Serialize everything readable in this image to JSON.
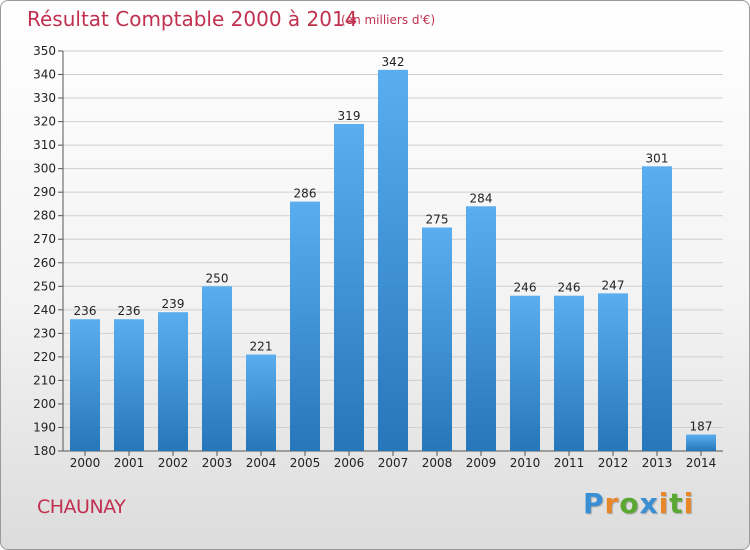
{
  "header": {
    "title": "Résultat Comptable 2000 à 2014",
    "subtitle": "(en milliers d'€)"
  },
  "footer": {
    "city": "CHAUNAY",
    "logo": "Proxiti"
  },
  "colors": {
    "title": "#c0304f",
    "bar_top": "#5aaef0",
    "bar_bottom": "#2677b9",
    "grid": "#cfcfcf",
    "logo_letters": [
      "#3a8fd4",
      "#e8872a",
      "#5aa832",
      "#3a8fd4",
      "#e8872a",
      "#5aa832",
      "#e8872a"
    ]
  },
  "chart_data": {
    "type": "bar",
    "title": "Résultat Comptable 2000 à 2014",
    "unit": "(en milliers d'€)",
    "categories": [
      "2000",
      "2001",
      "2002",
      "2003",
      "2004",
      "2005",
      "2006",
      "2007",
      "2008",
      "2009",
      "2010",
      "2011",
      "2012",
      "2013",
      "2014"
    ],
    "values": [
      236,
      236,
      239,
      250,
      221,
      286,
      319,
      342,
      275,
      284,
      246,
      246,
      247,
      301,
      187
    ],
    "ylim": [
      180,
      350
    ],
    "yticks": [
      180,
      190,
      200,
      210,
      220,
      230,
      240,
      250,
      260,
      270,
      280,
      290,
      300,
      310,
      320,
      330,
      340,
      350
    ],
    "grid": true,
    "xlabel": "",
    "ylabel": ""
  }
}
